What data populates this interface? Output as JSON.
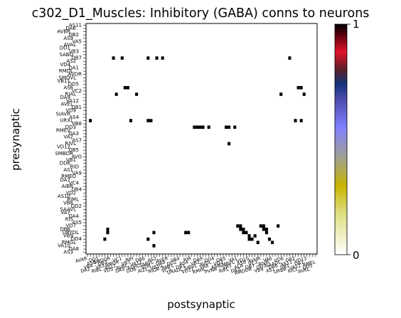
{
  "chart_data": {
    "type": "heatmap",
    "title": "c302_D1_Muscles: Inhibitory (GABA) conns to neurons",
    "xlabel": "postsynaptic",
    "ylabel": "presynaptic",
    "n_rows": 70,
    "n_cols": 80,
    "colorbar": {
      "min": 0,
      "max": 1,
      "tick_labels": [
        "0",
        "1"
      ]
    },
    "colormap_stops": [
      {
        "v": 0.0,
        "color": "#ffffff"
      },
      {
        "v": 0.18,
        "color": "#dede80"
      },
      {
        "v": 0.3,
        "color": "#c8b400"
      },
      {
        "v": 0.42,
        "color": "#a0a090"
      },
      {
        "v": 0.55,
        "color": "#8080ff"
      },
      {
        "v": 0.68,
        "color": "#4a4aa8"
      },
      {
        "v": 0.74,
        "color": "#12337a"
      },
      {
        "v": 0.8,
        "color": "#55202a"
      },
      {
        "v": 0.88,
        "color": "#e0142a"
      },
      {
        "v": 0.95,
        "color": "#600010"
      },
      {
        "v": 1.0,
        "color": "#000000"
      }
    ],
    "cells": [
      [
        10,
        9,
        1
      ],
      [
        10,
        12,
        1
      ],
      [
        10,
        21,
        1
      ],
      [
        10,
        24,
        1
      ],
      [
        10,
        26,
        1
      ],
      [
        10,
        70,
        1
      ],
      [
        19,
        13,
        1
      ],
      [
        19,
        14,
        1
      ],
      [
        19,
        73,
        1
      ],
      [
        19,
        74,
        1
      ],
      [
        21,
        10,
        1
      ],
      [
        21,
        17,
        1
      ],
      [
        21,
        67,
        1
      ],
      [
        21,
        75,
        1
      ],
      [
        29,
        1,
        1
      ],
      [
        29,
        15,
        1
      ],
      [
        29,
        21,
        1
      ],
      [
        29,
        22,
        1
      ],
      [
        29,
        72,
        1
      ],
      [
        29,
        74,
        1
      ],
      [
        31,
        37,
        1
      ],
      [
        31,
        38,
        1
      ],
      [
        31,
        39,
        1
      ],
      [
        31,
        40,
        1
      ],
      [
        31,
        42,
        1
      ],
      [
        31,
        48,
        1
      ],
      [
        31,
        49,
        1
      ],
      [
        31,
        51,
        1
      ],
      [
        36,
        49,
        1
      ],
      [
        61,
        52,
        1
      ],
      [
        61,
        53,
        1
      ],
      [
        61,
        60,
        1
      ],
      [
        61,
        61,
        1
      ],
      [
        61,
        66,
        1
      ],
      [
        62,
        7,
        1
      ],
      [
        62,
        53,
        1
      ],
      [
        62,
        54,
        1
      ],
      [
        62,
        61,
        1
      ],
      [
        62,
        62,
        1
      ],
      [
        63,
        7,
        1
      ],
      [
        63,
        23,
        1
      ],
      [
        63,
        34,
        1
      ],
      [
        63,
        35,
        1
      ],
      [
        63,
        54,
        1
      ],
      [
        63,
        55,
        1
      ],
      [
        63,
        62,
        1
      ],
      [
        64,
        56,
        1
      ],
      [
        64,
        58,
        1
      ],
      [
        65,
        6,
        1
      ],
      [
        65,
        21,
        1
      ],
      [
        65,
        56,
        1
      ],
      [
        65,
        57,
        1
      ],
      [
        65,
        63,
        1
      ],
      [
        66,
        59,
        1
      ],
      [
        66,
        64,
        1
      ],
      [
        67,
        23,
        1
      ]
    ],
    "note": "cells are [row, col, value]; row/column neuron labels are too small to read and are rendered as illegible tick labels"
  },
  "y_tick_labels": [
    "AS11",
    "DA6",
    "AVBR",
    "DB2",
    "AS9",
    "VA5",
    "AVAL",
    "DD1",
    "VB3",
    "SABD",
    "DB7",
    "AS2",
    "VD4",
    "DA1",
    "RMDL",
    "AVDR",
    "SMDVL",
    "VB11",
    "DD5",
    "AS6",
    "VC2",
    "RIAL",
    "DA9",
    "VA12",
    "AVEL",
    "DB1",
    "VD9",
    "SIAVR",
    "AS4",
    "URXL",
    "VB8",
    "DD3",
    "RMEV",
    "DA3",
    "VA2",
    "AS7",
    "RIVL",
    "VD12",
    "DB5",
    "SMBDR",
    "AVG",
    "VB1",
    "DD6",
    "RID",
    "AS1",
    "VA9",
    "RMED",
    "DA7",
    "VC4",
    "AIBR",
    "DB4",
    "VD2",
    "AS10",
    "RIML",
    "VB6",
    "DD2",
    "SAAVL",
    "VA7",
    "DA4",
    "RIS",
    "AS5",
    "VD7",
    "DB6",
    "URYDL",
    "VB9",
    "DD4",
    "RMGL",
    "VA10",
    "DA8",
    "AS3"
  ],
  "x_tick_labels": [
    "AVAR",
    "DA2",
    "VB4",
    "AS8",
    "DD1",
    "RIBL",
    "VA3",
    "DB3",
    "SMDDR",
    "VD5",
    "AS12",
    "RMDR",
    "VC1",
    "DA5",
    "AVBL",
    "VB7",
    "RIH",
    "DD6",
    "ASHL",
    "VA11",
    "DB6",
    "AIZL",
    "VD8",
    "SABVL",
    "AS2",
    "RIGR",
    "VB10",
    "DA8",
    "AVER",
    "VC5",
    "RMFL",
    "DD2",
    "VA4",
    "URADL",
    "DB1",
    "AS4",
    "RIR",
    "VD11",
    "SIBVL",
    "VB2",
    "DA9",
    "RMHL",
    "VA8",
    "AVDL",
    "DD4",
    "PVNR",
    "AS6",
    "VD3",
    "DB5",
    "RIPL",
    "VB5",
    "SMBVL",
    "VA1",
    "DA3",
    "ALA",
    "AS9",
    "VD10",
    "RMDDR",
    "DB7",
    "VC3",
    "AVHR",
    "VB9",
    "DD3",
    "RIVR",
    "VA6",
    "AS1",
    "DA6",
    "SAADL",
    "VD6",
    "URBR",
    "VB1",
    "AS11",
    "DB2",
    "RICL",
    "VA12",
    "DA1",
    "VD13",
    "AVKL",
    "DD5",
    "RMEL"
  ]
}
